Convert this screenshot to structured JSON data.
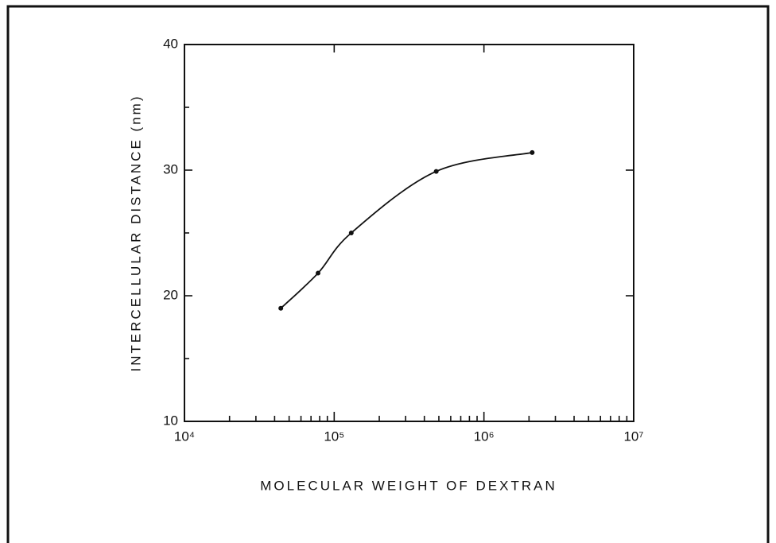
{
  "chart_data": {
    "type": "line",
    "xlabel": "MOLECULAR WEIGHT OF DEXTRAN",
    "ylabel": "INTERCELLULAR DISTANCE (nm)",
    "x": [
      44000,
      78000,
      130000,
      480000,
      2100000
    ],
    "series": [
      {
        "color": "#111111",
        "values": [
          19,
          21.8,
          25,
          29.9,
          31.4
        ]
      }
    ],
    "xlog": true,
    "xlim": [
      10000,
      10000000
    ],
    "xticks": [
      {
        "value": 10000,
        "label": "10⁴"
      },
      {
        "value": 100000,
        "label": "10⁵"
      },
      {
        "value": 1000000,
        "label": "10⁶"
      },
      {
        "value": 10000000,
        "label": "10⁷"
      }
    ],
    "x_minor_ticks": true,
    "ylim": [
      10,
      40
    ],
    "yticks": [
      10,
      20,
      30,
      40
    ],
    "y_minor_ticks": [
      15,
      25,
      35
    ],
    "markers": true,
    "grid": false
  }
}
